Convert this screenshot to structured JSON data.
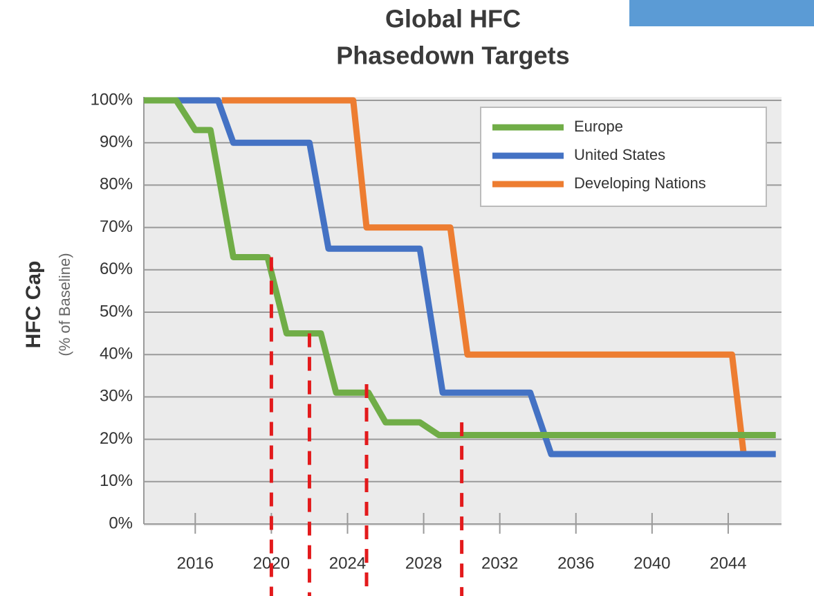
{
  "chart_data": {
    "type": "line",
    "title": [
      "Global HFC",
      "Phasedown Targets"
    ],
    "y_label": "HFC Cap",
    "y_sublabel": "(% of Baseline)",
    "xlim": [
      2013.3,
      2046.8
    ],
    "xticks": [
      2016,
      2020,
      2024,
      2028,
      2032,
      2036,
      2040,
      2044
    ],
    "ylim": [
      0,
      100
    ],
    "yticks": [
      {
        "value": 0,
        "label": "0%"
      },
      {
        "value": 10,
        "label": "10%"
      },
      {
        "value": 20,
        "label": "20%"
      },
      {
        "value": 30,
        "label": "30%"
      },
      {
        "value": 40,
        "label": "40%"
      },
      {
        "value": 50,
        "label": "50%"
      },
      {
        "value": 60,
        "label": "60%"
      },
      {
        "value": 70,
        "label": "70%"
      },
      {
        "value": 80,
        "label": "80%"
      },
      {
        "value": 90,
        "label": "90%"
      },
      {
        "value": 100,
        "label": "100%"
      }
    ],
    "grid": true,
    "legend": "upper right",
    "series": [
      {
        "name": "Europe",
        "color": "#70ad47",
        "x": [
          2013.3,
          2015,
          2016,
          2016.8,
          2018,
          2019.8,
          2020.8,
          2022.6,
          2023.4,
          2025.1,
          2026,
          2027.8,
          2028.8,
          2046.5
        ],
        "values": [
          100,
          100,
          93,
          93,
          63,
          63,
          45,
          45,
          31,
          31,
          24,
          24,
          21,
          21
        ]
      },
      {
        "name": "United States",
        "color": "#4472c4",
        "x": [
          2013.3,
          2017.2,
          2018,
          2022,
          2023,
          2027.8,
          2029,
          2033.6,
          2034.7,
          2046.5
        ],
        "values": [
          100,
          100,
          90,
          90,
          65,
          65,
          31,
          31,
          16.5,
          16.5
        ]
      },
      {
        "name": "Developing Nations",
        "color": "#ed7d31",
        "x": [
          2017.4,
          2024.3,
          2025,
          2029.4,
          2030.3,
          2044.2,
          2044.8
        ],
        "values": [
          100,
          100,
          70,
          70,
          40,
          40,
          17
        ]
      }
    ],
    "reference_lines": {
      "color": "#e31a1c",
      "x": [
        2020,
        2022,
        2025,
        2030
      ],
      "values": [
        63,
        45,
        33,
        24
      ]
    }
  }
}
